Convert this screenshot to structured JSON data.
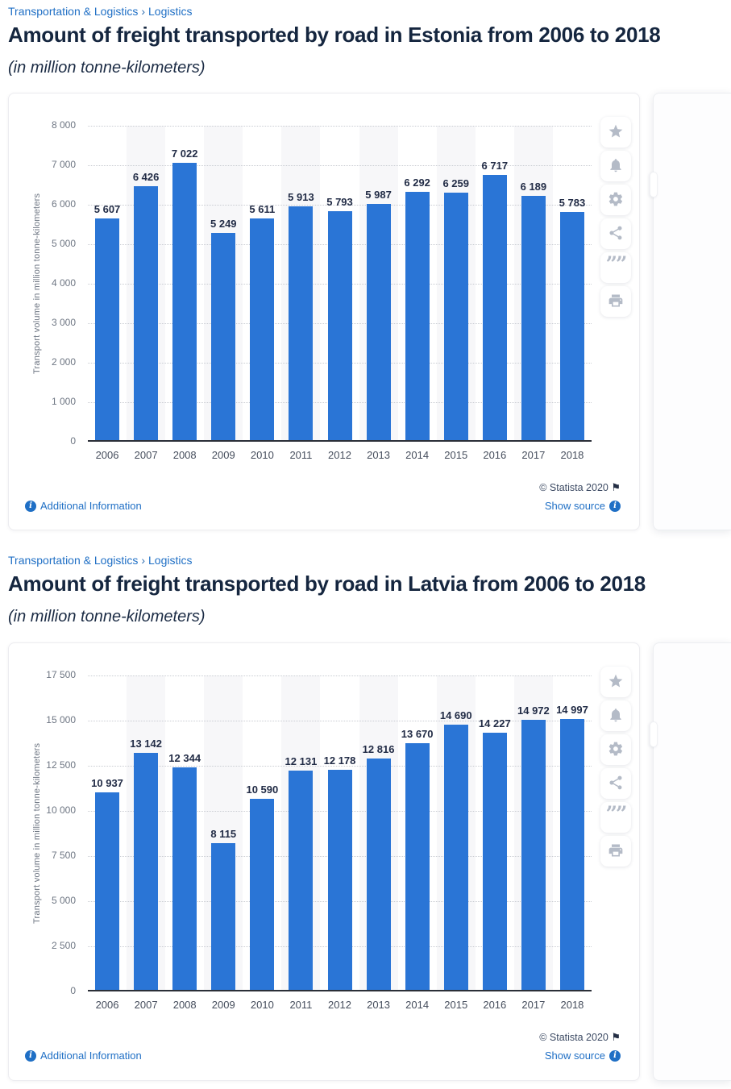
{
  "breadcrumb": {
    "category": "Transportation & Logistics",
    "separator": "›",
    "subcategory": "Logistics"
  },
  "footer": {
    "copyright": "© Statista 2020",
    "flag_glyph": "⚑",
    "additional_information": "Additional Information",
    "show_source": "Show source",
    "info_glyph": "i"
  },
  "toolbar": {
    "icons": [
      "favorite-star-icon",
      "notification-bell-icon",
      "settings-gear-icon",
      "share-icon",
      "citation-quote-icon",
      "print-icon"
    ],
    "quote_glyph": "””"
  },
  "colors": {
    "bar": "#2a75d6",
    "link": "#1f6fc5",
    "title_text": "#15263f",
    "axis_text": "#6e7683",
    "value_label": "#222c46",
    "stripe": "#f7f7f9"
  },
  "chart_data": [
    {
      "type": "bar",
      "title": "Amount of freight transported by road in Estonia from 2006 to 2018",
      "subtitle": "(in million tonne-kilometers)",
      "categories": [
        "2006",
        "2007",
        "2008",
        "2009",
        "2010",
        "2011",
        "2012",
        "2013",
        "2014",
        "2015",
        "2016",
        "2017",
        "2018"
      ],
      "values": [
        5607,
        6426,
        7022,
        5249,
        5611,
        5913,
        5793,
        5987,
        6292,
        6259,
        6717,
        6189,
        5783
      ],
      "xlabel": "",
      "ylabel": "Transport volume in million tonne-kilometers",
      "ylim": [
        0,
        8000
      ],
      "ytick_step": 1000,
      "grid": "horizontal dotted",
      "legend": "none",
      "value_labels_above_bars": true
    },
    {
      "type": "bar",
      "title": "Amount of freight transported by road in Latvia from 2006 to 2018",
      "subtitle": "(in million tonne-kilometers)",
      "categories": [
        "2006",
        "2007",
        "2008",
        "2009",
        "2010",
        "2011",
        "2012",
        "2013",
        "2014",
        "2015",
        "2016",
        "2017",
        "2018"
      ],
      "values": [
        10937,
        13142,
        12344,
        8115,
        10590,
        12131,
        12178,
        12816,
        13670,
        14690,
        14227,
        14972,
        14997
      ],
      "xlabel": "",
      "ylabel": "Transport volume in million tonne-kilometers",
      "ylim": [
        0,
        17500
      ],
      "ytick_step": 2500,
      "grid": "horizontal dotted",
      "legend": "none",
      "value_labels_above_bars": true
    }
  ]
}
